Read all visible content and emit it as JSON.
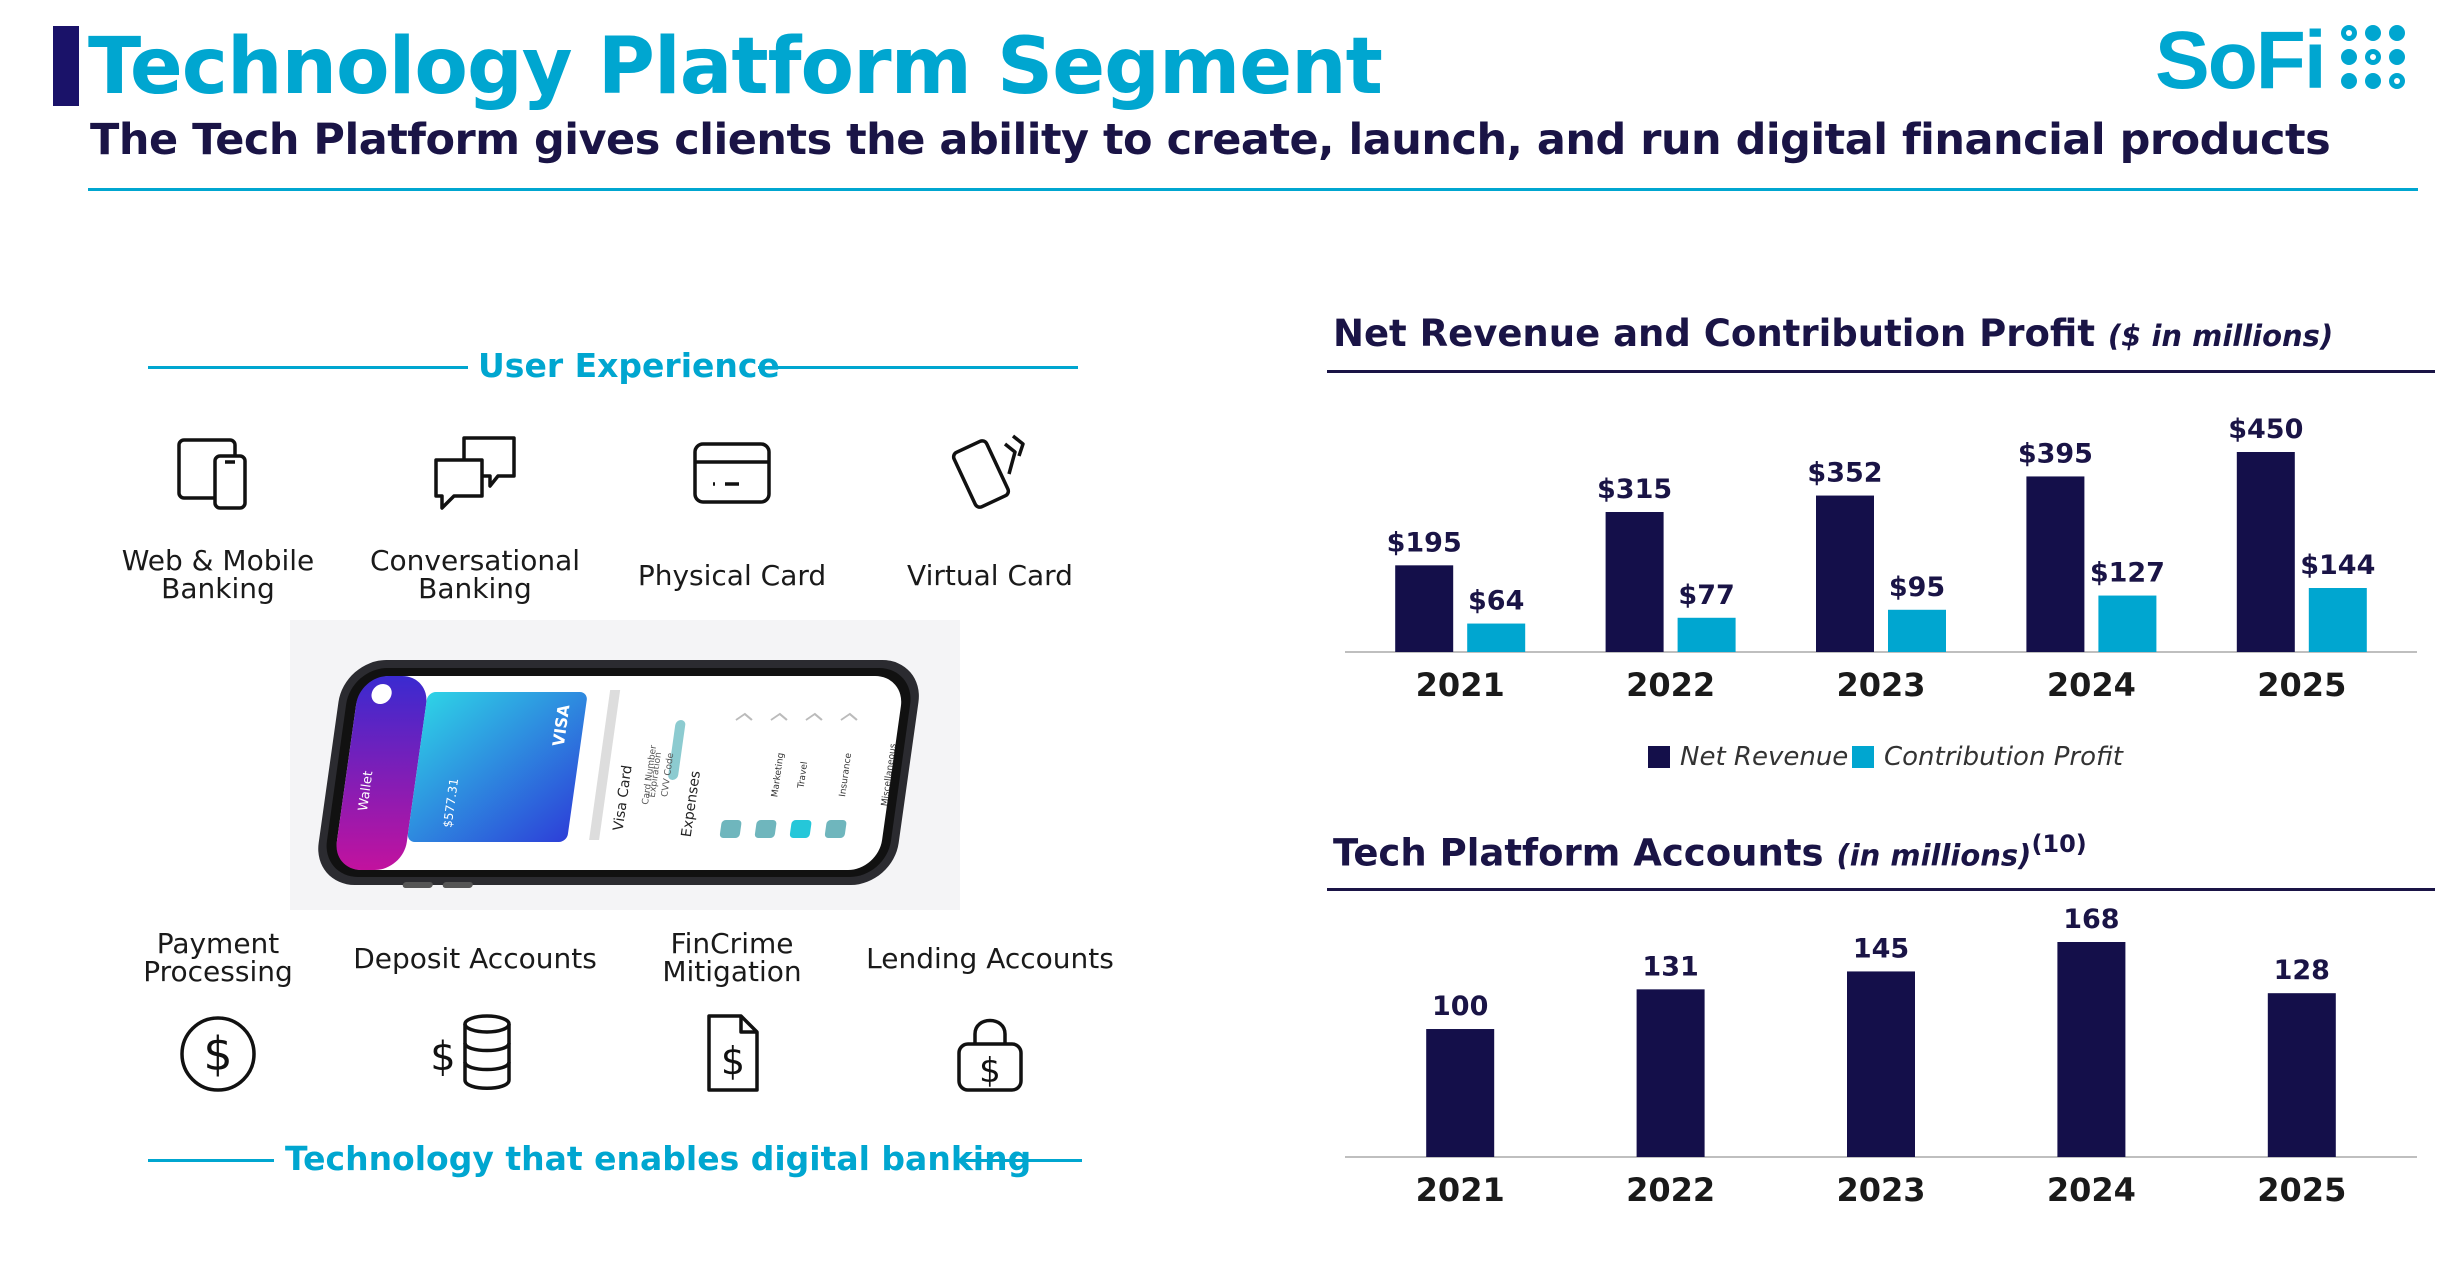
{
  "header": {
    "title": "Technology Platform Segment",
    "subtitle": "The Tech Platform gives clients the ability to create, launch, and run digital financial products",
    "logo_text": "SoFi",
    "logo_icon": "sofi-dots-logo"
  },
  "left_panel": {
    "top_label": "User Experience",
    "bottom_label": "Technology that enables digital banking",
    "top_features": [
      {
        "label": "Web & Mobile Banking",
        "icon": "devices-icon"
      },
      {
        "label": "Conversational Banking",
        "icon": "chat-bubbles-icon"
      },
      {
        "label": "Physical Card",
        "icon": "card-icon"
      },
      {
        "label": "Virtual Card",
        "icon": "virtual-card-icon"
      }
    ],
    "bottom_features": [
      {
        "label": "Payment Processing",
        "icon": "dollar-circle-icon"
      },
      {
        "label": "Deposit Accounts",
        "icon": "database-dollar-icon"
      },
      {
        "label": "FinCrime Mitigation",
        "icon": "document-dollar-icon"
      },
      {
        "label": "Lending Accounts",
        "icon": "lock-dollar-icon"
      }
    ],
    "phone": {
      "tab_label": "Wallet",
      "card_brand": "VISA",
      "card_balance": "$577.31",
      "detail_title": "Visa Card",
      "detail_rows": [
        "Card Number",
        "Expiration",
        "CVV Code"
      ],
      "expenses_label": "Expenses",
      "categories": [
        "Marketing",
        "Travel",
        "Insurance",
        "Miscellaneous"
      ]
    }
  },
  "colors": {
    "navy": "#140f4a",
    "cyan": "#00a6d0",
    "text_dark": "#1a1446"
  },
  "chart_data": [
    {
      "type": "bar",
      "title": "Net Revenue and Contribution Profit",
      "units": "($ in millions)",
      "categories": [
        "2021",
        "2022",
        "2023",
        "2024",
        "2025"
      ],
      "series": [
        {
          "name": "Net Revenue",
          "values": [
            195,
            315,
            352,
            395,
            450
          ],
          "labels": [
            "$195",
            "$315",
            "$352",
            "$395",
            "$450"
          ],
          "color": "#140f4a"
        },
        {
          "name": "Contribution Profit",
          "values": [
            64,
            77,
            95,
            127,
            144
          ],
          "labels": [
            "$64",
            "$77",
            "$95",
            "$127",
            "$144"
          ],
          "color": "#00a6d0"
        }
      ],
      "ylim": [
        0,
        450
      ],
      "legend": "bottom-center"
    },
    {
      "type": "bar",
      "title": "Tech Platform Accounts",
      "units": "(in millions)",
      "footnote": "(10)",
      "categories": [
        "2021",
        "2022",
        "2023",
        "2024",
        "2025"
      ],
      "series": [
        {
          "name": "Tech Platform Accounts",
          "values": [
            100,
            131,
            145,
            168,
            128
          ],
          "labels": [
            "100",
            "131",
            "145",
            "168",
            "128"
          ],
          "color": "#140f4a"
        }
      ],
      "ylim": [
        0,
        168
      ]
    }
  ]
}
